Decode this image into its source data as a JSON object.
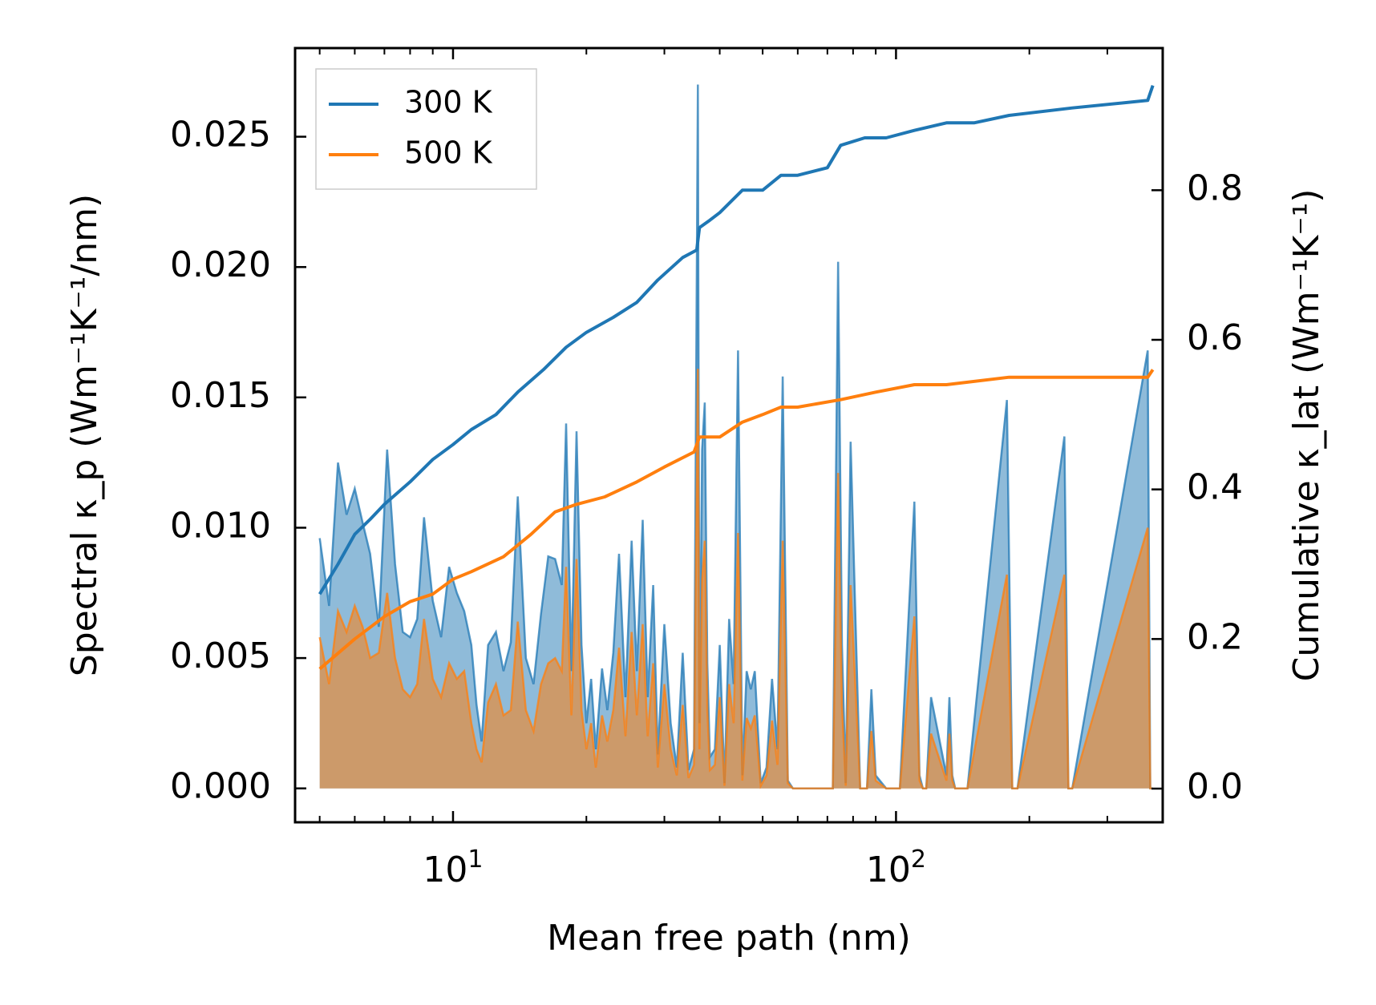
{
  "chart_data": {
    "type": "area",
    "xlabel": "Mean free path (nm)",
    "ylabel_left": "Spectral κ_p (Wm⁻¹K⁻¹/nm)",
    "ylabel_right": "Cumulative κ_lat (Wm⁻¹K⁻¹)",
    "xscale": "log",
    "xlim": [
      4.4,
      400
    ],
    "ylim_left": [
      -0.0013,
      0.0284
    ],
    "ylim_right": [
      -0.045,
      0.99
    ],
    "x_ticks": [
      {
        "value": 10,
        "base": "10",
        "exp": "1"
      },
      {
        "value": 100,
        "base": "10",
        "exp": "2"
      }
    ],
    "y_ticks_left": [
      "0.000",
      "0.005",
      "0.010",
      "0.015",
      "0.020",
      "0.025"
    ],
    "y_ticks_right": [
      "0.0",
      "0.2",
      "0.4",
      "0.6",
      "0.8"
    ],
    "legend": {
      "position": "top-left",
      "entries": [
        "300 K",
        "500 K"
      ]
    },
    "colors": {
      "s300": "#1f77b4",
      "s500": "#ff7f0e",
      "fill300": "#1f77b4",
      "fill500": "#ff7f0e"
    },
    "cumulative": [
      {
        "name": "300 K",
        "x": [
          5.0,
          5.5,
          6.0,
          6.5,
          7.0,
          8.0,
          9.0,
          10.0,
          11.0,
          12.5,
          14.0,
          16.0,
          18.0,
          20.0,
          23.0,
          26.0,
          29.0,
          33.0,
          35.5,
          36.0,
          38.0,
          40.0,
          45.0,
          50.0,
          55.0,
          60.0,
          70.0,
          75.0,
          85.0,
          95.0,
          110.0,
          130.0,
          150.0,
          180.0,
          250.0,
          370.0,
          380.0
        ],
        "y": [
          0.26,
          0.3,
          0.34,
          0.36,
          0.38,
          0.41,
          0.44,
          0.46,
          0.48,
          0.5,
          0.53,
          0.56,
          0.59,
          0.61,
          0.63,
          0.65,
          0.68,
          0.71,
          0.72,
          0.75,
          0.76,
          0.77,
          0.8,
          0.8,
          0.82,
          0.82,
          0.83,
          0.86,
          0.87,
          0.87,
          0.88,
          0.89,
          0.89,
          0.9,
          0.91,
          0.92,
          0.94
        ]
      },
      {
        "name": "500 K",
        "x": [
          5.0,
          6.0,
          7.0,
          8.0,
          9.0,
          10.0,
          11.0,
          13.0,
          15.0,
          17.0,
          19.0,
          22.0,
          26.0,
          30.0,
          35.0,
          36.0,
          40.0,
          45.0,
          50.0,
          55.0,
          60.0,
          75.0,
          90.0,
          110.0,
          130.0,
          180.0,
          250.0,
          370.0,
          380.0
        ],
        "y": [
          0.16,
          0.2,
          0.23,
          0.25,
          0.26,
          0.28,
          0.29,
          0.31,
          0.34,
          0.37,
          0.38,
          0.39,
          0.41,
          0.43,
          0.45,
          0.47,
          0.47,
          0.49,
          0.5,
          0.51,
          0.51,
          0.52,
          0.53,
          0.54,
          0.54,
          0.55,
          0.55,
          0.55,
          0.56
        ]
      }
    ],
    "spectral": [
      {
        "name": "300 K",
        "x": [
          5.0,
          5.25,
          5.5,
          5.75,
          6.0,
          6.25,
          6.5,
          6.8,
          7.1,
          7.4,
          7.7,
          8.0,
          8.3,
          8.6,
          9.0,
          9.4,
          9.8,
          10.2,
          10.6,
          11.0,
          11.3,
          11.6,
          12.0,
          12.5,
          13.0,
          13.5,
          14.0,
          14.6,
          15.2,
          15.8,
          16.4,
          17.0,
          17.6,
          18.0,
          18.5,
          19.0,
          19.5,
          20.0,
          20.5,
          21.0,
          21.7,
          22.3,
          23.0,
          23.7,
          24.5,
          25.3,
          26.0,
          26.8,
          27.5,
          28.3,
          29.0,
          30.0,
          31.0,
          32.0,
          33.0,
          34.0,
          35.0,
          35.7,
          36.0,
          36.5,
          37.0,
          37.5,
          38.0,
          39.0,
          40.0,
          41.0,
          42.0,
          43.0,
          44.0,
          45.0,
          46.0,
          47.0,
          48.0,
          49.5,
          51.0,
          52.5,
          54.0,
          55.5,
          57.0,
          58.5,
          60.0,
          62.0,
          70.0,
          72.0,
          74.0,
          75.5,
          77.0,
          79.0,
          83.0,
          86.0,
          88.0,
          90.0,
          95.0,
          98.0,
          100.0,
          102.0,
          110.0,
          113.0,
          115.0,
          117.0,
          120.0,
          130.0,
          132.0,
          134.0,
          136.0,
          138.0,
          140.0,
          142.0,
          145.0,
          178.0,
          183.0,
          188.0,
          240.0,
          245.0,
          250.0,
          370.0,
          375.0,
          380.0
        ],
        "y": [
          0.0096,
          0.007,
          0.0125,
          0.0105,
          0.0115,
          0.0102,
          0.009,
          0.0062,
          0.013,
          0.0086,
          0.006,
          0.0058,
          0.0065,
          0.0104,
          0.0072,
          0.0058,
          0.0085,
          0.0075,
          0.0068,
          0.0055,
          0.0032,
          0.0018,
          0.0055,
          0.006,
          0.0045,
          0.0056,
          0.0112,
          0.005,
          0.004,
          0.0067,
          0.0089,
          0.0088,
          0.0078,
          0.014,
          0.0045,
          0.0137,
          0.0055,
          0.0025,
          0.0042,
          0.0015,
          0.0046,
          0.003,
          0.0052,
          0.009,
          0.0035,
          0.0095,
          0.0045,
          0.0103,
          0.0035,
          0.0078,
          0.0013,
          0.0063,
          0.0025,
          0.0008,
          0.0052,
          0.0007,
          0.0015,
          0.027,
          0.0025,
          0.013,
          0.0148,
          0.0048,
          0.0012,
          0.0015,
          0.0055,
          0.0002,
          0.0065,
          0.004,
          0.0168,
          0.0005,
          0.0045,
          0.0038,
          0.0045,
          0.0002,
          0.0008,
          0.0042,
          0.0015,
          0.0158,
          0.0003,
          0.0,
          0.0,
          0.0,
          0.0,
          0.0,
          0.0202,
          0.0055,
          0.0002,
          0.0133,
          0.0,
          0.0,
          0.0038,
          0.0005,
          0.0,
          0.0,
          0.0,
          0.0,
          0.011,
          0.0005,
          0.0,
          0.0,
          0.0035,
          0.0005,
          0.0035,
          0.0005,
          0.0,
          0.0,
          0.0,
          0.0,
          0.0,
          0.0149,
          0.0,
          0.0,
          0.0135,
          0.0,
          0.0,
          0.0168,
          0.0,
          0.0
        ]
      },
      {
        "name": "500 K",
        "x": [
          5.0,
          5.25,
          5.5,
          5.75,
          6.0,
          6.25,
          6.5,
          6.8,
          7.1,
          7.4,
          7.7,
          8.0,
          8.3,
          8.6,
          9.0,
          9.4,
          9.8,
          10.2,
          10.6,
          11.0,
          11.3,
          11.6,
          12.0,
          12.5,
          13.0,
          13.5,
          14.0,
          14.6,
          15.2,
          15.8,
          16.4,
          17.0,
          17.6,
          18.0,
          18.5,
          19.0,
          19.5,
          20.0,
          20.5,
          21.0,
          21.7,
          22.3,
          23.0,
          23.7,
          24.5,
          25.3,
          26.0,
          26.8,
          27.5,
          28.3,
          29.0,
          30.0,
          31.0,
          32.0,
          33.0,
          34.0,
          35.0,
          35.7,
          36.0,
          36.5,
          37.0,
          37.5,
          38.0,
          39.0,
          40.0,
          41.0,
          42.0,
          43.0,
          44.0,
          45.0,
          46.0,
          47.0,
          48.0,
          49.5,
          51.0,
          52.5,
          54.0,
          55.5,
          57.0,
          58.5,
          60.0,
          62.0,
          70.0,
          72.0,
          74.0,
          75.5,
          77.0,
          79.0,
          83.0,
          86.0,
          88.0,
          90.0,
          95.0,
          98.0,
          100.0,
          102.0,
          110.0,
          113.0,
          115.0,
          117.0,
          120.0,
          130.0,
          132.0,
          134.0,
          136.0,
          138.0,
          140.0,
          142.0,
          145.0,
          178.0,
          183.0,
          188.0,
          240.0,
          245.0,
          250.0,
          370.0,
          375.0,
          380.0
        ],
        "y": [
          0.0058,
          0.004,
          0.0068,
          0.006,
          0.007,
          0.0062,
          0.005,
          0.0052,
          0.0075,
          0.005,
          0.0038,
          0.0035,
          0.004,
          0.0065,
          0.0042,
          0.0035,
          0.0048,
          0.0042,
          0.0045,
          0.0025,
          0.0015,
          0.001,
          0.0033,
          0.004,
          0.0028,
          0.003,
          0.0064,
          0.003,
          0.0022,
          0.004,
          0.0048,
          0.005,
          0.0045,
          0.0085,
          0.0028,
          0.0088,
          0.003,
          0.0015,
          0.0025,
          0.0008,
          0.0028,
          0.0018,
          0.003,
          0.0054,
          0.002,
          0.006,
          0.0028,
          0.0063,
          0.002,
          0.0048,
          0.0008,
          0.004,
          0.0015,
          0.0005,
          0.0032,
          0.0004,
          0.0009,
          0.0161,
          0.0015,
          0.008,
          0.0095,
          0.003,
          0.0007,
          0.0009,
          0.0035,
          0.0001,
          0.004,
          0.0025,
          0.0098,
          0.0003,
          0.0027,
          0.0023,
          0.0028,
          0.0001,
          0.0005,
          0.0026,
          0.0009,
          0.0095,
          0.0002,
          0.0,
          0.0,
          0.0,
          0.0,
          0.0,
          0.0121,
          0.0032,
          0.0001,
          0.0078,
          0.0,
          0.0,
          0.0022,
          0.0003,
          0.0,
          0.0,
          0.0,
          0.0,
          0.0066,
          0.0003,
          0.0,
          0.0,
          0.0021,
          0.0003,
          0.0021,
          0.0003,
          0.0,
          0.0,
          0.0,
          0.0,
          0.0,
          0.0082,
          0.0,
          0.0,
          0.0082,
          0.0,
          0.0,
          0.01,
          0.0,
          0.0
        ]
      }
    ]
  }
}
